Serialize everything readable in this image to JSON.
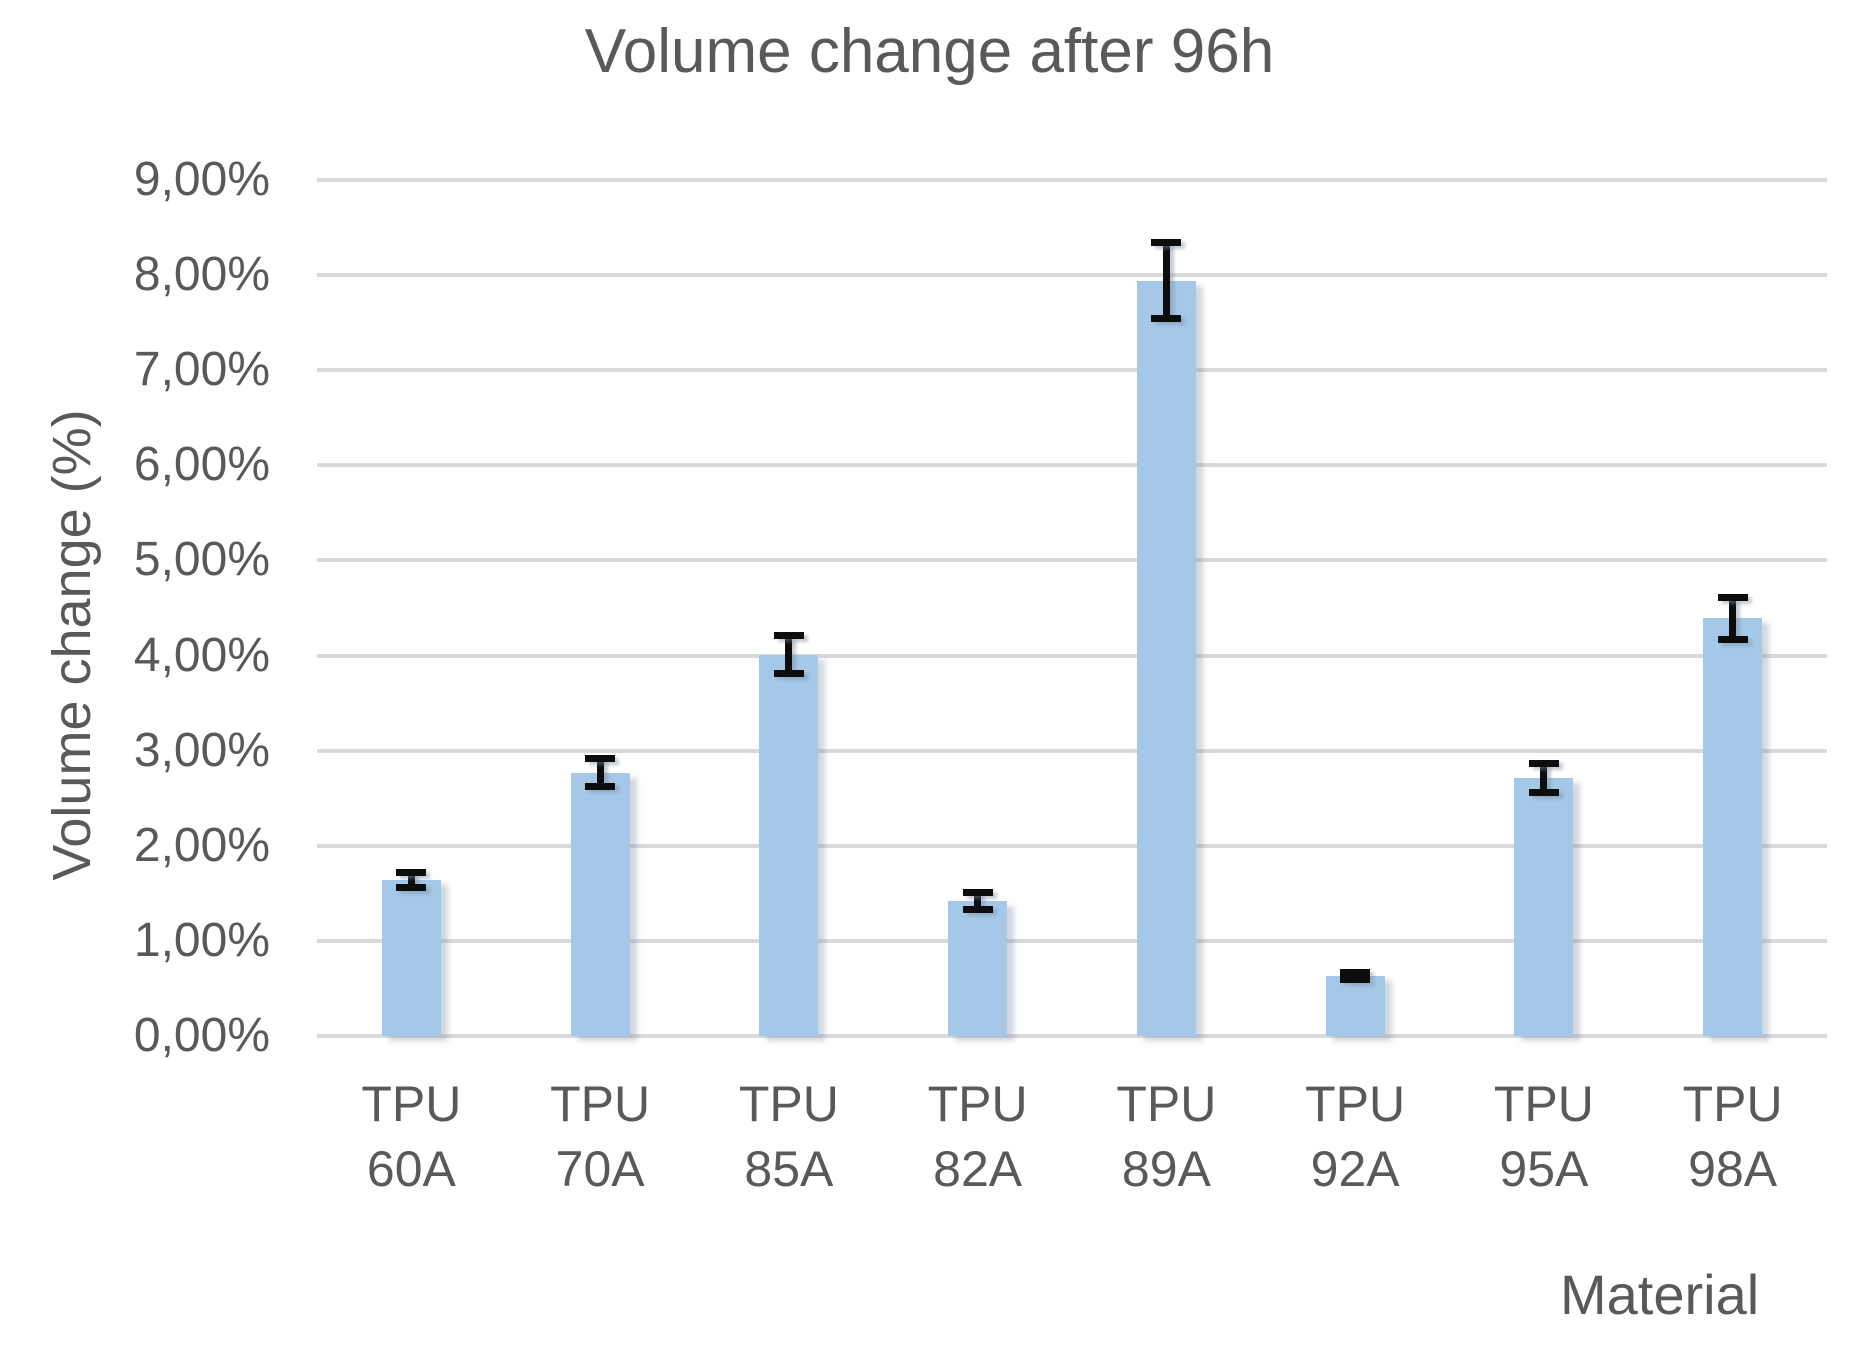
{
  "chart_data": {
    "type": "bar",
    "title": "Volume change after 96h",
    "xlabel": "Material",
    "ylabel": "Volume change (%)",
    "categories": [
      "TPU 60A",
      "TPU 70A",
      "TPU 85A",
      "TPU 82A",
      "TPU 89A",
      "TPU 92A",
      "TPU 95A",
      "TPU 98A"
    ],
    "series": [
      {
        "name": "Volume change after 96h",
        "values": [
          1.64,
          2.77,
          4.01,
          1.42,
          7.94,
          0.63,
          2.71,
          4.39
        ],
        "error_bars": [
          0.08,
          0.15,
          0.2,
          0.09,
          0.4,
          0.04,
          0.15,
          0.22
        ]
      }
    ],
    "ylim": [
      0,
      9
    ],
    "ytick_step": 1,
    "ytick_labels": [
      "0,00%",
      "1,00%",
      "2,00%",
      "3,00%",
      "4,00%",
      "5,00%",
      "6,00%",
      "7,00%",
      "8,00%",
      "9,00%"
    ],
    "decimal_separator": ",",
    "grid": true,
    "legend": false,
    "colors": {
      "bar": "#a5c8e8",
      "gridline": "#d9d9d9",
      "text": "#595959",
      "error_bar": "#0d0d0d",
      "background": "#ffffff"
    }
  }
}
